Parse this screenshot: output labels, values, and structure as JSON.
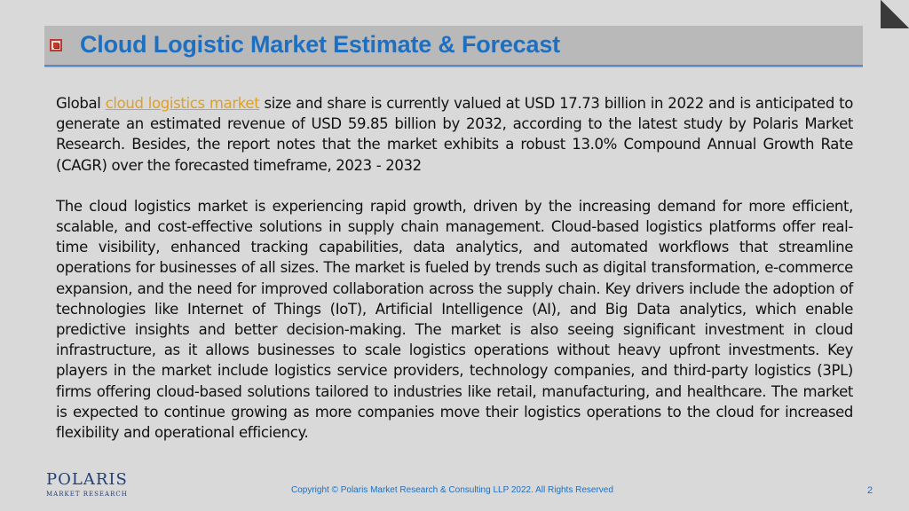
{
  "title": "Cloud Logistic Market Estimate & Forecast",
  "paragraph1": {
    "before_link": "Global ",
    "link": "cloud logistics market",
    "after_link": " size and share is currently valued at USD 17.73 billion in 2022 and is anticipated to generate an estimated revenue of USD 59.85 billion by 2032, according to the latest study by Polaris Market Research. Besides, the report notes that the market exhibits a robust 13.0% Compound Annual Growth Rate (CAGR) over the forecasted timeframe, 2023 - 2032"
  },
  "paragraph2": "The cloud logistics market is experiencing rapid growth, driven by the increasing demand for more efficient, scalable, and cost-effective solutions in supply chain management. Cloud-based logistics platforms offer real-time visibility, enhanced tracking capabilities, data analytics, and automated workflows that streamline operations for businesses of all sizes. The market is fueled by trends such as digital transformation, e-commerce expansion, and the need for improved collaboration across the supply chain. Key drivers include the adoption of technologies like Internet of Things (IoT), Artificial Intelligence (AI), and Big Data analytics, which enable predictive insights and better decision-making. The market is also seeing significant investment in cloud infrastructure, as it allows businesses to scale logistics operations without heavy upfront investments. Key players in the market include logistics service providers, technology companies, and third-party logistics (3PL) firms offering cloud-based solutions tailored to industries like retail, manufacturing, and healthcare. The market is expected to continue growing as more companies move their logistics operations to the cloud for increased flexibility and operational efficiency.",
  "logo": {
    "main": "POLARIS",
    "sub": "MARKET RESEARCH"
  },
  "footer": "Copyright © Polaris Market Research & Consulting LLP 2022. All Rights Reserved",
  "page_number": "2",
  "colors": {
    "title": "#1d6fc2",
    "link": "#e0a020",
    "bullet": "#c0392b",
    "title_bar": "#b9b9b9",
    "background": "#d9d9d9"
  }
}
